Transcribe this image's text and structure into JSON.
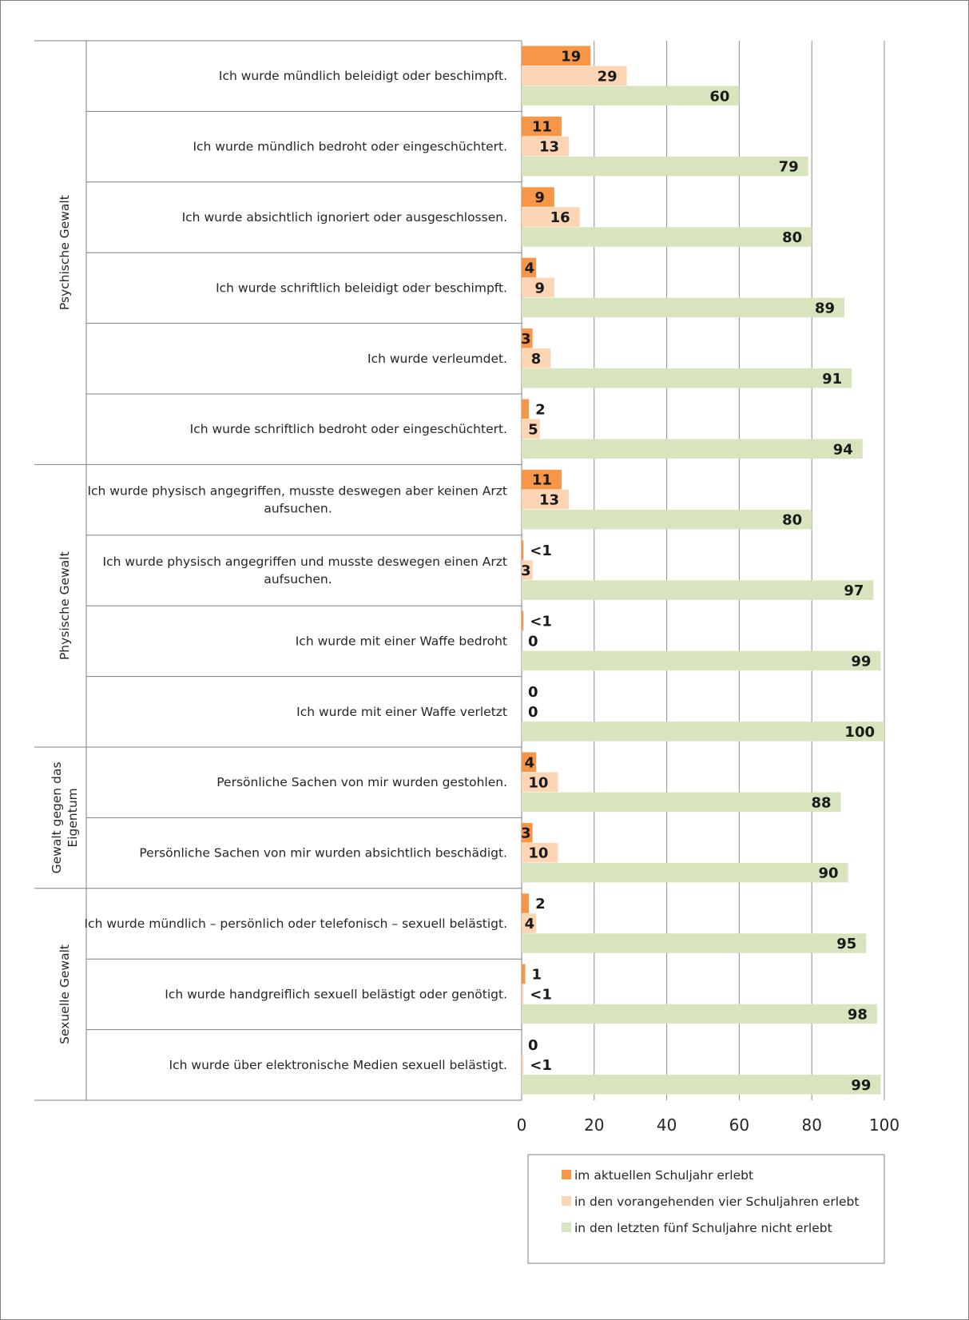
{
  "chart_data": {
    "type": "bar",
    "orientation": "horizontal",
    "title": "",
    "xlim": [
      0,
      100
    ],
    "xticks": [
      "0",
      "20",
      "40",
      "60",
      "80",
      "100"
    ],
    "grid": "vertical",
    "legend_position": "bottom-right",
    "groups": [
      {
        "label": "Psychische Gewalt",
        "start": 0,
        "count": 6
      },
      {
        "label": "Physische Gewalt",
        "start": 6,
        "count": 4
      },
      {
        "label": "Gewalt gegen das Eigentum",
        "lines": [
          "Gewalt gegen das",
          "Eigentum"
        ],
        "start": 10,
        "count": 2
      },
      {
        "label": "Sexuelle Gewalt",
        "start": 12,
        "count": 3
      }
    ],
    "categories": [
      {
        "lines": [
          "Ich wurde mündlich beleidigt oder beschimpft."
        ]
      },
      {
        "lines": [
          "Ich wurde mündlich bedroht oder eingeschüchtert."
        ]
      },
      {
        "lines": [
          "Ich wurde absichtlich ignoriert oder ausgeschlossen."
        ]
      },
      {
        "lines": [
          "Ich wurde schriftlich beleidigt oder beschimpft."
        ]
      },
      {
        "lines": [
          "Ich wurde verleumdet."
        ]
      },
      {
        "lines": [
          "Ich wurde schriftlich bedroht oder eingeschüchtert."
        ]
      },
      {
        "lines": [
          "Ich wurde physisch angegriffen, musste deswegen aber keinen Arzt",
          "aufsuchen."
        ]
      },
      {
        "lines": [
          "Ich wurde physisch angegriffen und musste deswegen einen Arzt",
          "aufsuchen."
        ]
      },
      {
        "lines": [
          "Ich wurde mit einer Waffe bedroht"
        ]
      },
      {
        "lines": [
          "Ich wurde mit einer Waffe verletzt"
        ]
      },
      {
        "lines": [
          "Persönliche Sachen von mir wurden gestohlen."
        ]
      },
      {
        "lines": [
          "Persönliche Sachen von mir wurden absichtlich beschädigt."
        ]
      },
      {
        "lines": [
          "Ich wurde mündlich – persönlich oder telefonisch – sexuell belästigt."
        ]
      },
      {
        "lines": [
          "Ich wurde handgreiflich sexuell belästigt oder genötigt."
        ]
      },
      {
        "lines": [
          "Ich wurde über elektronische Medien sexuell belästigt."
        ]
      }
    ],
    "series": [
      {
        "name": "im aktuellen Schuljahr erlebt",
        "color": "#f79646",
        "values": [
          19,
          11,
          9,
          4,
          3,
          2,
          11,
          0.5,
          0.5,
          0,
          4,
          3,
          2,
          1,
          0
        ],
        "labels": [
          "19",
          "11",
          "9",
          "4",
          "3",
          "2",
          "11",
          "<1",
          "<1",
          "0",
          "4",
          "3",
          "2",
          "1",
          "0"
        ]
      },
      {
        "name": "in den vorangehenden vier Schuljahren erlebt",
        "color": "#fcd5b5",
        "values": [
          29,
          13,
          16,
          9,
          8,
          5,
          13,
          3,
          0,
          0,
          10,
          10,
          4,
          0.5,
          0.5
        ],
        "labels": [
          "29",
          "13",
          "16",
          "9",
          "8",
          "5",
          "13",
          "3",
          "0",
          "0",
          "10",
          "10",
          "4",
          "<1",
          "<1"
        ]
      },
      {
        "name": "in den letzten fünf Schuljahre nicht erlebt",
        "color": "#d7e4bd",
        "values": [
          60,
          79,
          80,
          89,
          91,
          94,
          80,
          97,
          99,
          100,
          88,
          90,
          95,
          98,
          99
        ],
        "labels": [
          "60",
          "79",
          "80",
          "89",
          "91",
          "94",
          "80",
          "97",
          "99",
          "100",
          "88",
          "90",
          "95",
          "98",
          "99"
        ]
      }
    ]
  }
}
